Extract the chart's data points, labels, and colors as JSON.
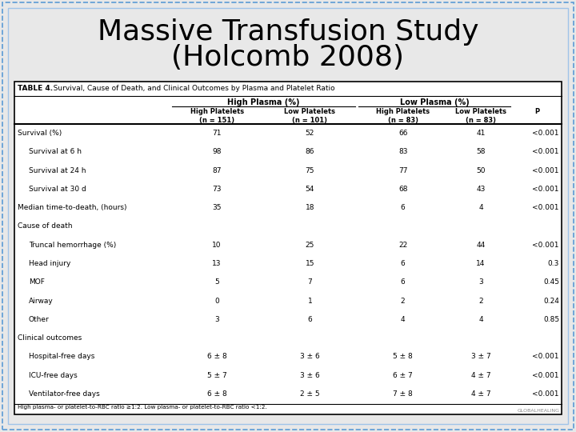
{
  "title_line1": "Massive Transfusion Study",
  "title_line2": "(Holcomb 2008)",
  "title_fontsize": 26,
  "bg_color": "#e8e8e8",
  "table_title_bold": "TABLE 4.",
  "table_title_rest": "   Survival, Cause of Death, and Clinical Outcomes by Plasma and Platelet Ratio",
  "col_headers_top": [
    "High Plasma (%)",
    "Low Plasma (%)"
  ],
  "col_headers_sub": [
    "High Platelets\n(n = 151)",
    "Low Platelets\n(n = 101)",
    "High Platelets\n(n = 83)",
    "Low Platelets\n(n = 83)",
    "P"
  ],
  "rows": [
    [
      "Survival (%)",
      false,
      "71",
      "52",
      "66",
      "41",
      "<0.001"
    ],
    [
      "Survival at 6 h",
      true,
      "98",
      "86",
      "83",
      "58",
      "<0.001"
    ],
    [
      "Survival at 24 h",
      true,
      "87",
      "75",
      "77",
      "50",
      "<0.001"
    ],
    [
      "Survival at 30 d",
      true,
      "73",
      "54",
      "68",
      "43",
      "<0.001"
    ],
    [
      "Median time-to-death, (hours)",
      false,
      "35",
      "18",
      "6",
      "4",
      "<0.001"
    ],
    [
      "Cause of death",
      false,
      "",
      "",
      "",
      "",
      ""
    ],
    [
      "Truncal hemorrhage (%)",
      true,
      "10",
      "25",
      "22",
      "44",
      "<0.001"
    ],
    [
      "Head injury",
      true,
      "13",
      "15",
      "6",
      "14",
      "0.3"
    ],
    [
      "MOF",
      true,
      "5",
      "7",
      "6",
      "3",
      "0.45"
    ],
    [
      "Airway",
      true,
      "0",
      "1",
      "2",
      "2",
      "0.24"
    ],
    [
      "Other",
      true,
      "3",
      "6",
      "4",
      "4",
      "0.85"
    ],
    [
      "Clinical outcomes",
      false,
      "",
      "",
      "",
      "",
      ""
    ],
    [
      "Hospital-free days",
      true,
      "6 ± 8",
      "3 ± 6",
      "5 ± 8",
      "3 ± 7",
      "<0.001"
    ],
    [
      "ICU-free days",
      true,
      "5 ± 7",
      "3 ± 6",
      "6 ± 7",
      "4 ± 7",
      "<0.001"
    ],
    [
      "Ventilator-free days",
      true,
      "6 ± 8",
      "2 ± 5",
      "7 ± 8",
      "4 ± 7",
      "<0.001"
    ]
  ],
  "footnote": "High plasma- or platelet-to-RBC ratio ≥1:2. Low plasma- or platelet-to-RBC ratio <1:2.",
  "border_color": "#5b9bd5",
  "table_bg": "#ffffff",
  "watermark": "GLOBALHEALING"
}
